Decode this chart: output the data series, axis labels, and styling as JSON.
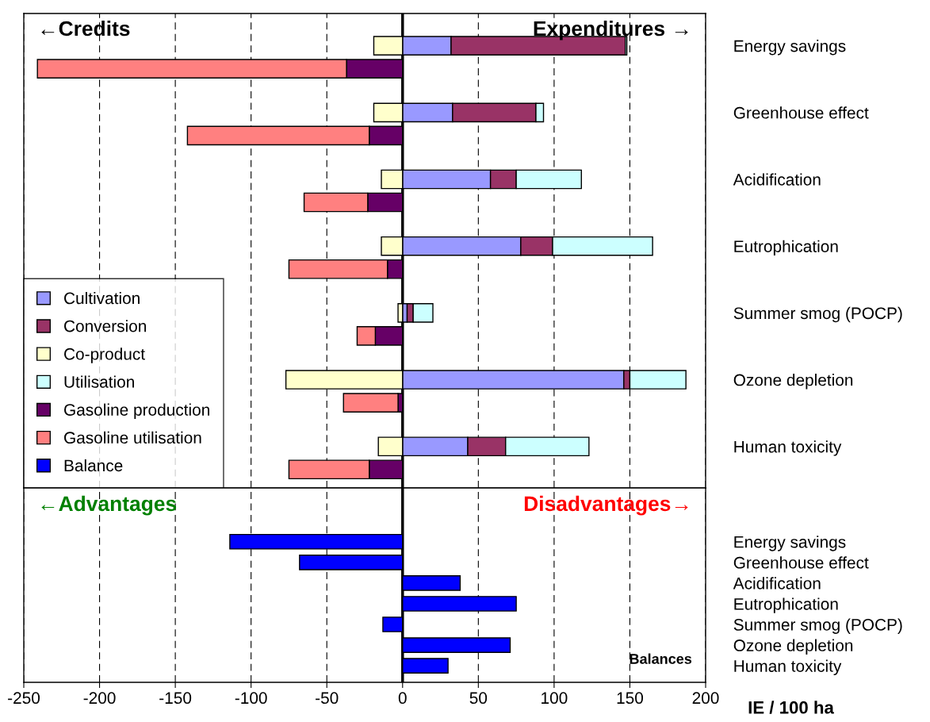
{
  "chart_data": [
    {
      "type": "bar",
      "orientation": "horizontal",
      "stacked": true,
      "categories": [
        "Energy savings",
        null,
        "Greenhouse effect",
        null,
        "Acidification",
        null,
        "Eutrophication",
        null,
        "Summer smog (POCP)",
        null,
        "Ozone depletion",
        null,
        "Human toxicity",
        null
      ],
      "series": [
        {
          "name": "Cultivation",
          "color": "#9999ff",
          "values": [
            32,
            null,
            33,
            null,
            58,
            null,
            78,
            null,
            3,
            null,
            146,
            null,
            43,
            null
          ]
        },
        {
          "name": "Conversion",
          "color": "#993366",
          "values": [
            115,
            null,
            55,
            null,
            17,
            null,
            21,
            null,
            4,
            null,
            4,
            null,
            25,
            null
          ]
        },
        {
          "name": "Co-product",
          "color": "#ffffcc",
          "values": [
            -19,
            null,
            -19,
            null,
            -14,
            null,
            -14,
            null,
            -3,
            null,
            -77,
            null,
            -16,
            null
          ]
        },
        {
          "name": "Utilisation",
          "color": "#ccffff",
          "values": [
            1,
            null,
            5,
            null,
            43,
            null,
            66,
            null,
            13,
            null,
            37,
            null,
            55,
            null
          ]
        },
        {
          "name": "Gasoline production",
          "color": "#660066",
          "values": [
            null,
            -37,
            null,
            -22,
            null,
            -23,
            null,
            -10,
            null,
            -18,
            null,
            -3,
            null,
            -22
          ]
        },
        {
          "name": "Gasoline utilisation",
          "color": "#ff8080",
          "values": [
            null,
            -204,
            null,
            -120,
            null,
            -42,
            null,
            -65,
            null,
            -12,
            null,
            -36,
            null,
            -53
          ]
        }
      ],
      "xlim": [
        -250,
        200
      ],
      "xticks": [
        -250,
        -200,
        -150,
        -100,
        -50,
        0,
        50,
        100,
        150,
        200
      ],
      "grid": "x",
      "tick_labels": "y",
      "legend": "bottom left",
      "ref_lines": [
        {
          "axis": "x",
          "value": 0
        }
      ],
      "annotations": [
        "←Credits",
        "Expenditures →"
      ]
    },
    {
      "type": "bar",
      "orientation": "horizontal",
      "categories": [
        "Energy savings",
        "Greenhouse effect",
        "Acidification",
        "Eutrophication",
        "Summer smog (POCP)",
        "Ozone depletion",
        "Human toxicity"
      ],
      "series": [
        {
          "name": "Balance",
          "color": "#0000ff",
          "values": [
            -114,
            -68,
            38,
            75,
            -13,
            71,
            30
          ]
        }
      ],
      "xlim": [
        -250,
        200
      ],
      "xticks": [
        -250,
        -200,
        -150,
        -100,
        -50,
        0,
        50,
        100,
        150,
        200
      ],
      "xlabel": "IE / 100 ha",
      "grid": "x",
      "ref_lines": [
        {
          "axis": "x",
          "value": 0
        }
      ],
      "annotations": [
        "←Advantages",
        "Disadvantages→",
        "Balances"
      ]
    }
  ]
}
